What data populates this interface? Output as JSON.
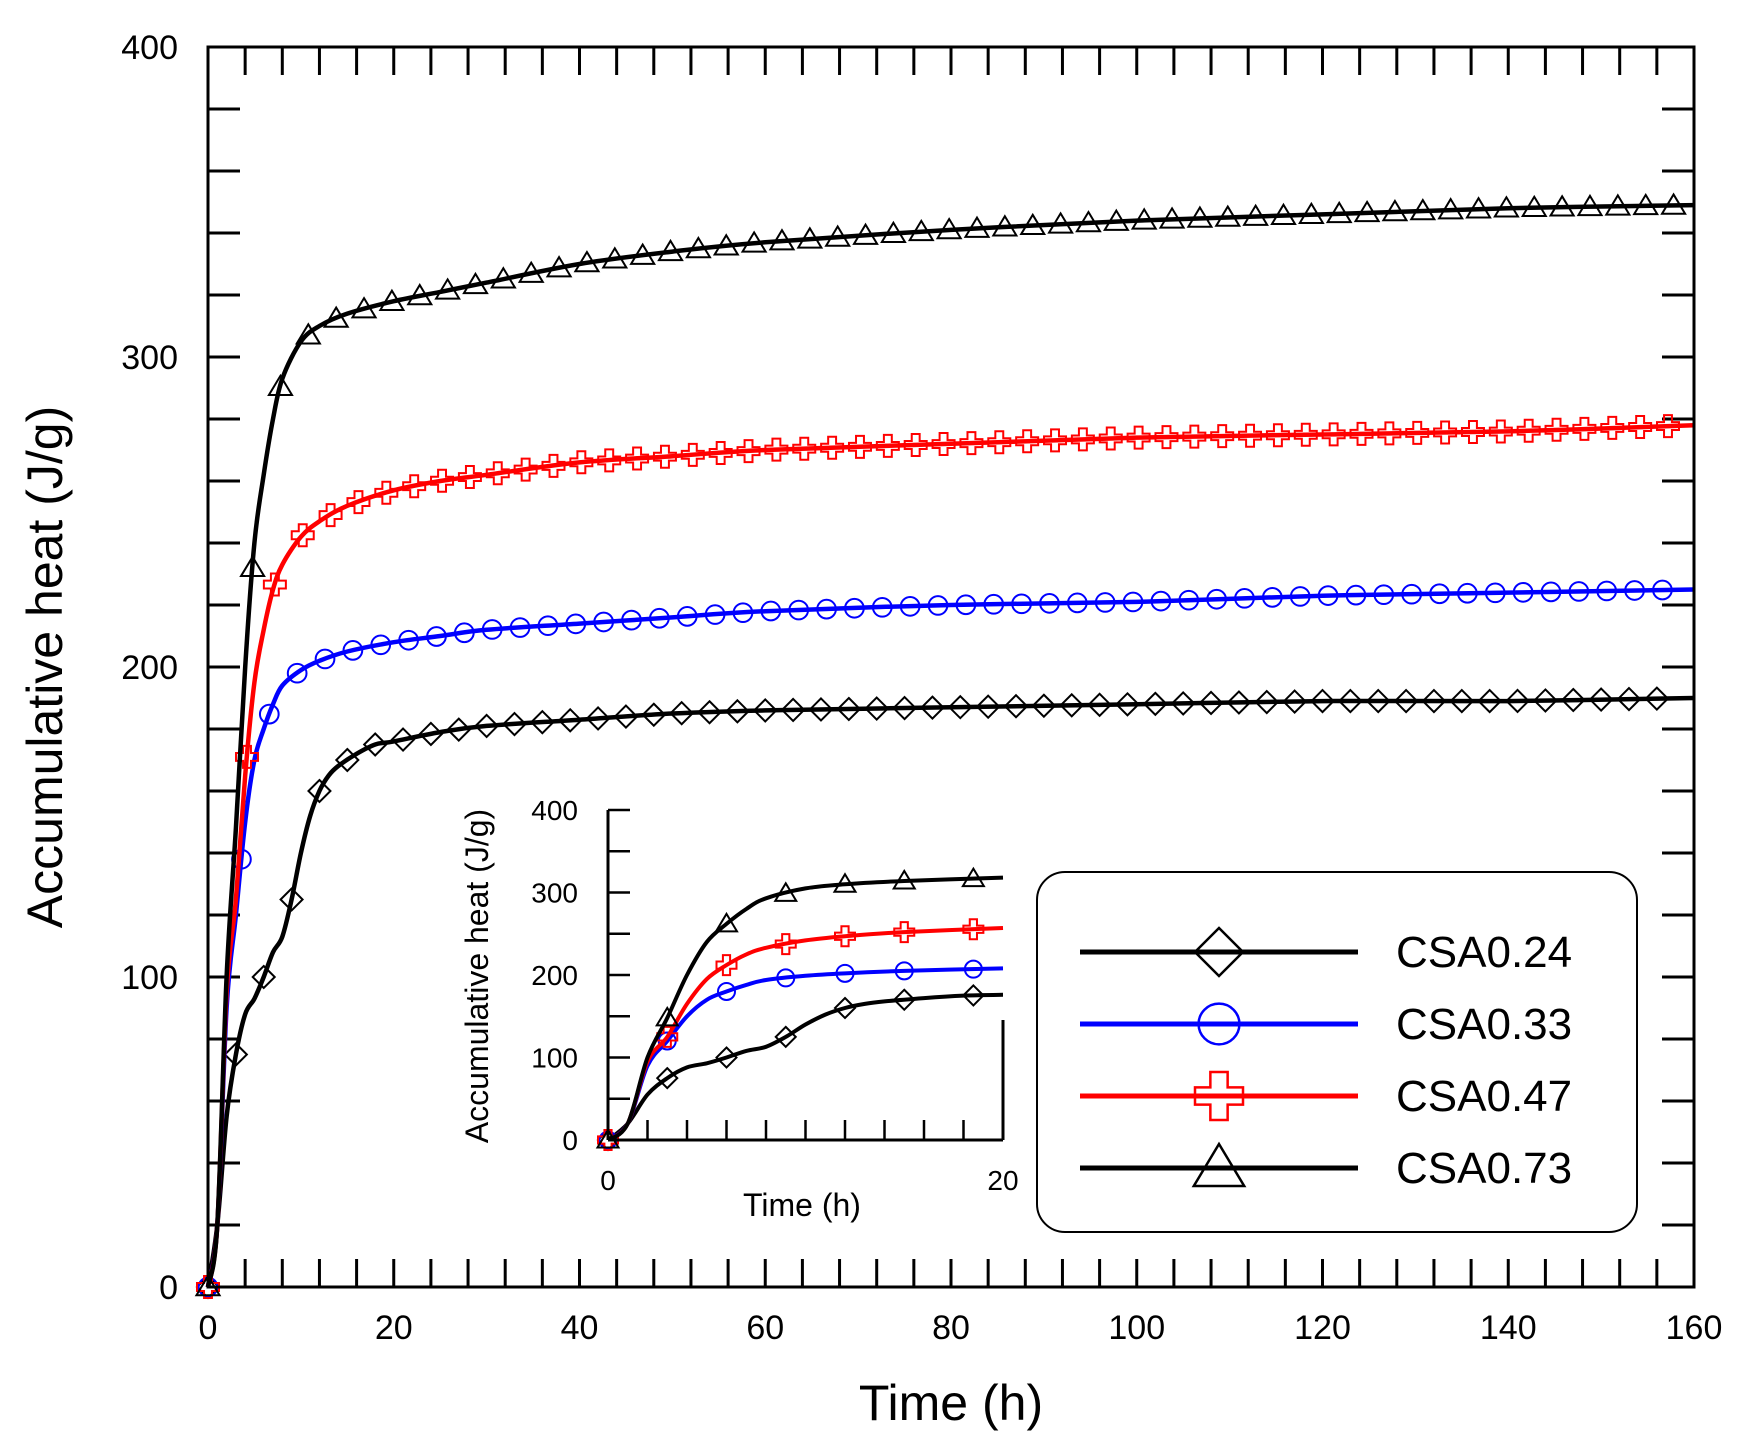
{
  "chart_data": {
    "type": "line",
    "xlabel": "Time (h)",
    "ylabel": "Accumulative heat (J/g)",
    "xlim": [
      0,
      160
    ],
    "ylim": [
      0,
      400
    ],
    "xticks": [
      "0",
      "20",
      "40",
      "60",
      "80",
      "100",
      "120",
      "140",
      "160"
    ],
    "yticks": [
      "0",
      "100",
      "200",
      "300",
      "400"
    ],
    "grid": false,
    "legend_position": "bottom-right",
    "series": [
      {
        "name": "CSA0.24",
        "color": "#000000",
        "marker": "diamond",
        "x": [
          0,
          1,
          2,
          3,
          4,
          5,
          6,
          7,
          8,
          9,
          10,
          11,
          12,
          13,
          14,
          16,
          18,
          20,
          25,
          30,
          40,
          50,
          60,
          80,
          100,
          120,
          140,
          160
        ],
        "y": [
          0,
          20,
          55,
          75,
          88,
          93,
          100,
          108,
          113,
          125,
          140,
          152,
          160,
          165,
          168,
          172,
          175,
          176,
          179,
          181,
          183,
          185,
          186,
          187,
          188,
          189,
          189,
          190
        ]
      },
      {
        "name": "CSA0.33",
        "color": "#0000ff",
        "marker": "circle",
        "x": [
          0,
          1,
          2,
          3,
          4,
          5,
          6,
          7,
          8,
          10,
          12,
          15,
          20,
          25,
          30,
          40,
          50,
          60,
          80,
          100,
          120,
          140,
          160
        ],
        "y": [
          0,
          20,
          90,
          120,
          150,
          170,
          180,
          188,
          194,
          199,
          202,
          205,
          208,
          210,
          212,
          214,
          216,
          218,
          220,
          221,
          223,
          224,
          225
        ]
      },
      {
        "name": "CSA0.47",
        "color": "#ff0000",
        "marker": "cross",
        "x": [
          0,
          1,
          2,
          3,
          4,
          5,
          6,
          7,
          8,
          10,
          12,
          15,
          20,
          25,
          30,
          40,
          50,
          60,
          80,
          100,
          120,
          140,
          160
        ],
        "y": [
          0,
          20,
          95,
          125,
          165,
          195,
          212,
          225,
          233,
          242,
          247,
          252,
          257,
          260,
          262,
          266,
          268,
          270,
          272,
          274,
          275,
          276,
          278
        ]
      },
      {
        "name": "CSA0.73",
        "color": "#000000",
        "marker": "triangle",
        "x": [
          0,
          1,
          2,
          3,
          4,
          5,
          6,
          7,
          8,
          10,
          12,
          15,
          20,
          25,
          30,
          40,
          50,
          60,
          80,
          100,
          120,
          140,
          160
        ],
        "y": [
          0,
          20,
          100,
          148,
          200,
          240,
          262,
          280,
          293,
          305,
          310,
          314,
          318,
          321,
          324,
          330,
          334,
          337,
          341,
          344,
          346,
          348,
          349
        ]
      }
    ],
    "inset": {
      "xlabel": "Time (h)",
      "ylabel": "Accumulative heat (J/g)",
      "xlim": [
        0,
        20
      ],
      "ylim": [
        0,
        400
      ],
      "xticks": [
        "0",
        "20"
      ],
      "yticks": [
        "0",
        "100",
        "200",
        "300",
        "400"
      ]
    }
  }
}
